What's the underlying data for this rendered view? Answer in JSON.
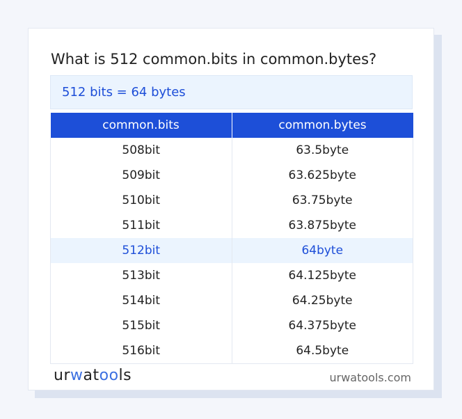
{
  "title": "What is 512 common.bits in common.bytes?",
  "result": "512 bits = 64 bytes",
  "table": {
    "headers": [
      "common.bits",
      "common.bytes"
    ],
    "rows": [
      [
        "508bit",
        "63.5byte"
      ],
      [
        "509bit",
        "63.625byte"
      ],
      [
        "510bit",
        "63.75byte"
      ],
      [
        "511bit",
        "63.875byte"
      ],
      [
        "512bit",
        "64byte"
      ],
      [
        "513bit",
        "64.125byte"
      ],
      [
        "514bit",
        "64.25byte"
      ],
      [
        "515bit",
        "64.375byte"
      ],
      [
        "516bit",
        "64.5byte"
      ]
    ],
    "highlighted_row": 4
  },
  "footer": {
    "logo": "urwatools",
    "site": "urwatools.com"
  },
  "colors": {
    "accent": "#1d4fd8",
    "highlight_bg": "#ebf4fe"
  }
}
